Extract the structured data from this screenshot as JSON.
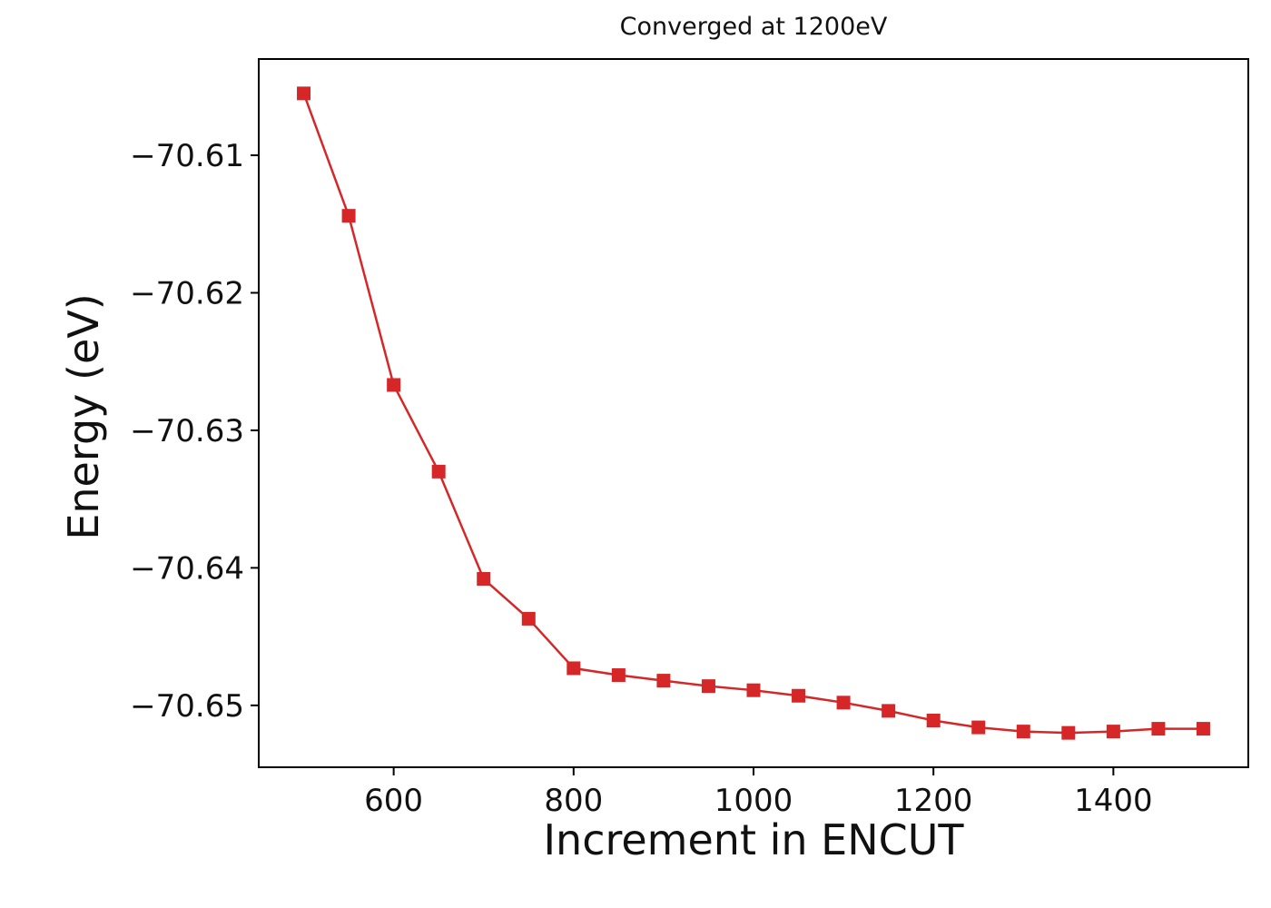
{
  "figure": {
    "background": "#ffffff"
  },
  "chart_data": {
    "type": "line",
    "title": "Converged at 1200eV",
    "xlabel": "Increment in ENCUT",
    "ylabel": "Energy (eV)",
    "series_color": "#d62728",
    "marker": "square",
    "marker_size": 15,
    "line_width": 2.5,
    "grid": false,
    "legend_position": "none",
    "x": [
      500,
      550,
      600,
      650,
      700,
      750,
      800,
      850,
      900,
      950,
      1000,
      1050,
      1100,
      1150,
      1200,
      1250,
      1300,
      1350,
      1400,
      1450,
      1500
    ],
    "y": [
      -70.6055,
      -70.6144,
      -70.6267,
      -70.633,
      -70.6408,
      -70.6437,
      -70.6473,
      -70.6478,
      -70.6482,
      -70.6486,
      -70.6489,
      -70.6493,
      -70.6498,
      -70.6504,
      -70.6511,
      -70.6516,
      -70.6519,
      -70.652,
      -70.6519,
      -70.6517,
      -70.6517
    ],
    "xlim": [
      450,
      1550
    ],
    "ylim": [
      -70.6545,
      -70.603
    ],
    "xticks": [
      600,
      800,
      1000,
      1200,
      1400
    ],
    "xtick_labels": [
      "600",
      "800",
      "1000",
      "1200",
      "1400"
    ],
    "yticks": [
      -70.61,
      -70.62,
      -70.63,
      -70.64,
      -70.65
    ],
    "ytick_labels": [
      "−70.61",
      "−70.62",
      "−70.63",
      "−70.64",
      "−70.65"
    ]
  }
}
